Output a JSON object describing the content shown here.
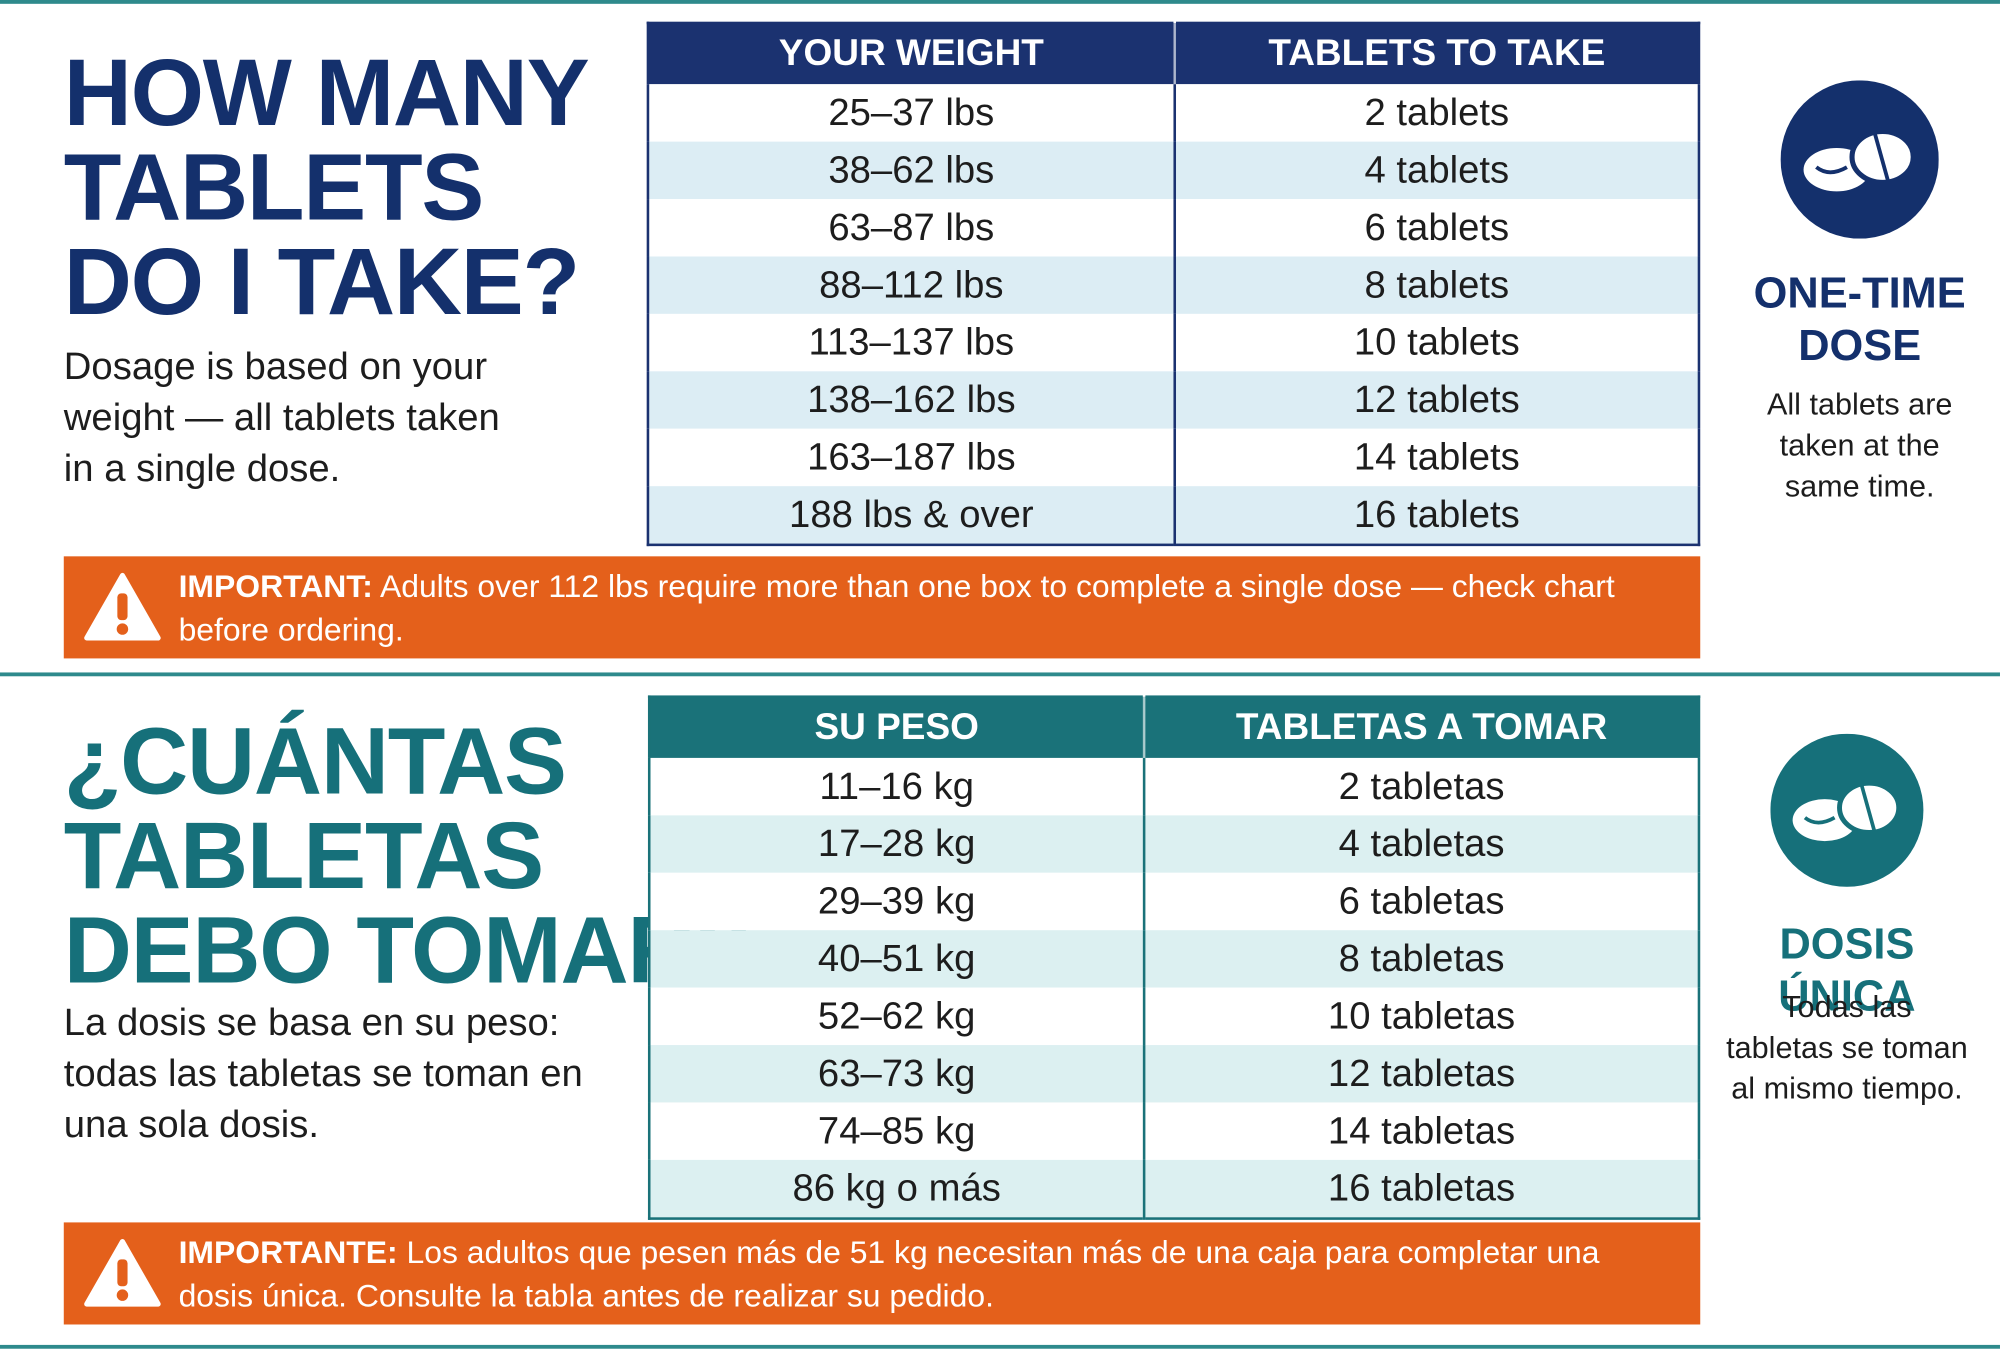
{
  "sections": [
    {
      "title_lines": [
        "HOW MANY",
        "TABLETS",
        "DO I TAKE?"
      ],
      "description": "Dosage is based on your weight — all tablets taken in a single dose.",
      "table": {
        "headers": [
          "YOUR WEIGHT",
          "TABLETS TO TAKE"
        ],
        "rows": [
          [
            "25–37 lbs",
            "2 tablets"
          ],
          [
            "38–62 lbs",
            "4 tablets"
          ],
          [
            "63–87 lbs",
            "6 tablets"
          ],
          [
            "88–112 lbs",
            "8 tablets"
          ],
          [
            "113–137 lbs",
            "10 tablets"
          ],
          [
            "138–162 lbs",
            "12 tablets"
          ],
          [
            "163–187 lbs",
            "14 tablets"
          ],
          [
            "188 lbs & over",
            "16 tablets"
          ]
        ]
      },
      "badge": {
        "title": "ONE-TIME DOSE",
        "text": "All tablets are taken at the same time."
      },
      "notice": {
        "label": "IMPORTANT:",
        "text": "Adults over 112 lbs require more than one box to complete a single dose — check chart before ordering."
      }
    },
    {
      "title_lines": [
        "¿CUÁNTAS",
        "TABLETAS",
        "DEBO TOMAR?"
      ],
      "description": "La dosis se basa en su peso: todas las tabletas se toman en una sola dosis.",
      "table": {
        "headers": [
          "SU PESO",
          "TABLETAS A TOMAR"
        ],
        "rows": [
          [
            "11–16 kg",
            "2 tabletas"
          ],
          [
            "17–28 kg",
            "4 tabletas"
          ],
          [
            "29–39 kg",
            "6 tabletas"
          ],
          [
            "40–51 kg",
            "8 tabletas"
          ],
          [
            "52–62 kg",
            "10 tabletas"
          ],
          [
            "63–73 kg",
            "12 tabletas"
          ],
          [
            "74–85 kg",
            "14 tabletas"
          ],
          [
            "86 kg o más",
            "16 tabletas"
          ]
        ]
      },
      "badge": {
        "title": "DOSIS ÚNICA",
        "text": "Todas las tabletas se toman al mismo tiempo."
      },
      "notice": {
        "label": "IMPORTANTE:",
        "text": "Los adultos que pesen más de 51 kg necesitan más de una caja para completar una dosis única. Consulte la tabla antes de realizar su pedido."
      }
    }
  ]
}
